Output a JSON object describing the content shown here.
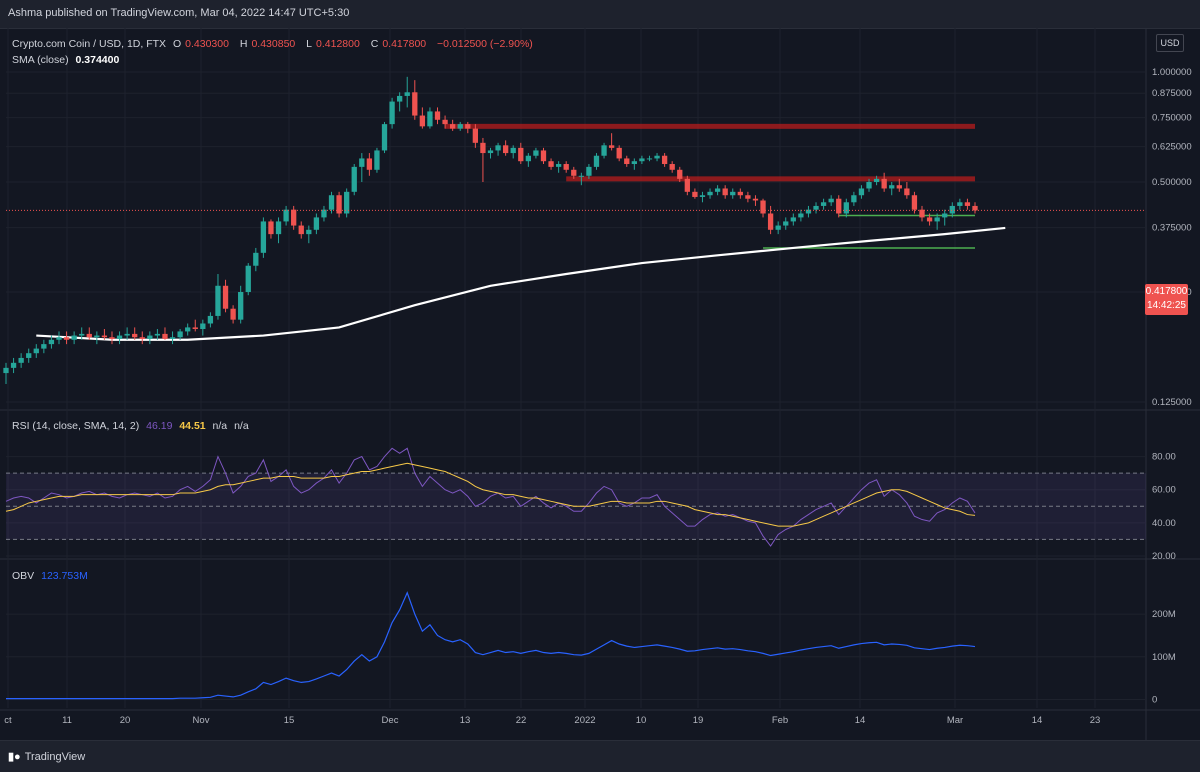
{
  "header": {
    "publisher": "Ashma published on TradingView.com, Mar 04, 2022 14:47 UTC+5:30"
  },
  "legend": {
    "symbol": "Crypto.com Coin / USD, 1D, FTX",
    "o_label": "O",
    "o_value": "0.430300",
    "h_label": "H",
    "h_value": "0.430850",
    "l_label": "L",
    "l_value": "0.412800",
    "c_label": "C",
    "c_value": "0.417800",
    "change": "−0.012500 (−2.90%)",
    "sma_label": "SMA (close)",
    "sma_value": "0.374400"
  },
  "rsi_legend": {
    "label": "RSI (14, close, SMA, 14, 2)",
    "value": "46.19",
    "sma_value": "44.51",
    "na1": "n/a",
    "na2": "n/a"
  },
  "obv_legend": {
    "label": "OBV",
    "value": "123.753M"
  },
  "currency": "USD",
  "last_price": {
    "value": "0.417800",
    "countdown": "14:42:25"
  },
  "footer": {
    "brand": "TradingView"
  },
  "colors": {
    "bg": "#131722",
    "up": "#26a69a",
    "down": "#ef5350",
    "sma": "#ffffff",
    "rsi": "#7e57c2",
    "rsi_sma": "#f7c948",
    "obv": "#2962ff",
    "support": "#4caf50",
    "resistance": "#b71c1c"
  },
  "chart_data": [
    {
      "type": "candlestick",
      "y_ticks": [
        "1.000000",
        "0.875000",
        "0.750000",
        "0.625000",
        "0.500000",
        "0.375000",
        "0.250000",
        "0.125000"
      ],
      "ylim": [
        0.125,
        1.0
      ],
      "x_ticks": [
        "ct",
        "11",
        "20",
        "Nov",
        "15",
        "Dec",
        "13",
        "22",
        "2022",
        "10",
        "19",
        "Feb",
        "14",
        "Mar",
        "14",
        "23"
      ],
      "ohlc": [
        [
          0.15,
          0.16,
          0.14,
          0.155
        ],
        [
          0.155,
          0.165,
          0.15,
          0.16
        ],
        [
          0.16,
          0.17,
          0.155,
          0.165
        ],
        [
          0.165,
          0.175,
          0.16,
          0.17
        ],
        [
          0.17,
          0.18,
          0.165,
          0.175
        ],
        [
          0.175,
          0.185,
          0.17,
          0.18
        ],
        [
          0.18,
          0.19,
          0.175,
          0.185
        ],
        [
          0.185,
          0.195,
          0.18,
          0.188
        ],
        [
          0.188,
          0.195,
          0.18,
          0.185
        ],
        [
          0.185,
          0.195,
          0.18,
          0.19
        ],
        [
          0.19,
          0.2,
          0.185,
          0.192
        ],
        [
          0.192,
          0.2,
          0.185,
          0.188
        ],
        [
          0.188,
          0.195,
          0.18,
          0.19
        ],
        [
          0.19,
          0.198,
          0.185,
          0.188
        ],
        [
          0.188,
          0.195,
          0.18,
          0.186
        ],
        [
          0.186,
          0.195,
          0.18,
          0.19
        ],
        [
          0.19,
          0.2,
          0.185,
          0.192
        ],
        [
          0.192,
          0.2,
          0.185,
          0.188
        ],
        [
          0.188,
          0.195,
          0.18,
          0.186
        ],
        [
          0.186,
          0.195,
          0.18,
          0.19
        ],
        [
          0.19,
          0.198,
          0.185,
          0.192
        ],
        [
          0.192,
          0.2,
          0.185,
          0.186
        ],
        [
          0.186,
          0.195,
          0.18,
          0.188
        ],
        [
          0.188,
          0.198,
          0.185,
          0.195
        ],
        [
          0.195,
          0.205,
          0.19,
          0.2
        ],
        [
          0.2,
          0.21,
          0.195,
          0.198
        ],
        [
          0.198,
          0.21,
          0.19,
          0.205
        ],
        [
          0.205,
          0.22,
          0.2,
          0.215
        ],
        [
          0.215,
          0.28,
          0.21,
          0.26
        ],
        [
          0.26,
          0.27,
          0.22,
          0.225
        ],
        [
          0.225,
          0.23,
          0.205,
          0.21
        ],
        [
          0.21,
          0.26,
          0.205,
          0.25
        ],
        [
          0.25,
          0.3,
          0.245,
          0.295
        ],
        [
          0.295,
          0.33,
          0.285,
          0.32
        ],
        [
          0.32,
          0.4,
          0.31,
          0.39
        ],
        [
          0.39,
          0.395,
          0.35,
          0.36
        ],
        [
          0.36,
          0.4,
          0.34,
          0.39
        ],
        [
          0.39,
          0.43,
          0.38,
          0.42
        ],
        [
          0.42,
          0.43,
          0.37,
          0.38
        ],
        [
          0.38,
          0.39,
          0.35,
          0.36
        ],
        [
          0.36,
          0.38,
          0.34,
          0.37
        ],
        [
          0.37,
          0.41,
          0.36,
          0.4
        ],
        [
          0.4,
          0.43,
          0.39,
          0.42
        ],
        [
          0.42,
          0.47,
          0.41,
          0.46
        ],
        [
          0.46,
          0.47,
          0.4,
          0.41
        ],
        [
          0.41,
          0.48,
          0.4,
          0.47
        ],
        [
          0.47,
          0.56,
          0.46,
          0.55
        ],
        [
          0.55,
          0.6,
          0.5,
          0.58
        ],
        [
          0.58,
          0.6,
          0.52,
          0.54
        ],
        [
          0.54,
          0.62,
          0.53,
          0.61
        ],
        [
          0.61,
          0.73,
          0.6,
          0.72
        ],
        [
          0.72,
          0.85,
          0.7,
          0.83
        ],
        [
          0.83,
          0.88,
          0.78,
          0.86
        ],
        [
          0.86,
          0.97,
          0.8,
          0.88
        ],
        [
          0.88,
          0.95,
          0.74,
          0.76
        ],
        [
          0.76,
          0.8,
          0.7,
          0.71
        ],
        [
          0.71,
          0.8,
          0.7,
          0.78
        ],
        [
          0.78,
          0.8,
          0.72,
          0.74
        ],
        [
          0.74,
          0.76,
          0.7,
          0.72
        ],
        [
          0.72,
          0.74,
          0.69,
          0.7
        ],
        [
          0.7,
          0.73,
          0.69,
          0.72
        ],
        [
          0.72,
          0.73,
          0.68,
          0.7
        ],
        [
          0.7,
          0.72,
          0.62,
          0.64
        ],
        [
          0.64,
          0.66,
          0.5,
          0.6
        ],
        [
          0.6,
          0.62,
          0.58,
          0.61
        ],
        [
          0.61,
          0.64,
          0.59,
          0.63
        ],
        [
          0.63,
          0.65,
          0.59,
          0.6
        ],
        [
          0.6,
          0.63,
          0.58,
          0.62
        ],
        [
          0.62,
          0.64,
          0.56,
          0.57
        ],
        [
          0.57,
          0.6,
          0.55,
          0.59
        ],
        [
          0.59,
          0.62,
          0.58,
          0.61
        ],
        [
          0.61,
          0.62,
          0.56,
          0.57
        ],
        [
          0.57,
          0.58,
          0.54,
          0.55
        ],
        [
          0.55,
          0.57,
          0.53,
          0.56
        ],
        [
          0.56,
          0.57,
          0.53,
          0.54
        ],
        [
          0.54,
          0.55,
          0.51,
          0.52
        ],
        [
          0.52,
          0.53,
          0.49,
          0.52
        ],
        [
          0.52,
          0.56,
          0.51,
          0.55
        ],
        [
          0.55,
          0.6,
          0.54,
          0.59
        ],
        [
          0.59,
          0.64,
          0.58,
          0.63
        ],
        [
          0.63,
          0.68,
          0.61,
          0.62
        ],
        [
          0.62,
          0.63,
          0.57,
          0.58
        ],
        [
          0.58,
          0.59,
          0.55,
          0.56
        ],
        [
          0.56,
          0.58,
          0.54,
          0.57
        ],
        [
          0.57,
          0.59,
          0.56,
          0.58
        ],
        [
          0.58,
          0.59,
          0.57,
          0.58
        ],
        [
          0.58,
          0.6,
          0.57,
          0.59
        ],
        [
          0.59,
          0.6,
          0.55,
          0.56
        ],
        [
          0.56,
          0.57,
          0.53,
          0.54
        ],
        [
          0.54,
          0.55,
          0.5,
          0.51
        ],
        [
          0.51,
          0.52,
          0.46,
          0.47
        ],
        [
          0.47,
          0.48,
          0.45,
          0.455
        ],
        [
          0.455,
          0.47,
          0.44,
          0.46
        ],
        [
          0.46,
          0.48,
          0.45,
          0.47
        ],
        [
          0.47,
          0.49,
          0.46,
          0.48
        ],
        [
          0.48,
          0.49,
          0.45,
          0.46
        ],
        [
          0.46,
          0.48,
          0.45,
          0.47
        ],
        [
          0.47,
          0.48,
          0.45,
          0.46
        ],
        [
          0.46,
          0.47,
          0.44,
          0.45
        ],
        [
          0.45,
          0.46,
          0.43,
          0.445
        ],
        [
          0.445,
          0.45,
          0.4,
          0.41
        ],
        [
          0.41,
          0.43,
          0.36,
          0.37
        ],
        [
          0.37,
          0.39,
          0.36,
          0.38
        ],
        [
          0.38,
          0.4,
          0.37,
          0.39
        ],
        [
          0.39,
          0.41,
          0.38,
          0.4
        ],
        [
          0.4,
          0.42,
          0.39,
          0.41
        ],
        [
          0.41,
          0.43,
          0.4,
          0.42
        ],
        [
          0.42,
          0.44,
          0.41,
          0.43
        ],
        [
          0.43,
          0.45,
          0.42,
          0.44
        ],
        [
          0.44,
          0.46,
          0.43,
          0.45
        ],
        [
          0.45,
          0.46,
          0.4,
          0.41
        ],
        [
          0.41,
          0.45,
          0.4,
          0.44
        ],
        [
          0.44,
          0.47,
          0.43,
          0.46
        ],
        [
          0.46,
          0.49,
          0.45,
          0.48
        ],
        [
          0.48,
          0.51,
          0.47,
          0.5
        ],
        [
          0.5,
          0.52,
          0.49,
          0.51
        ],
        [
          0.51,
          0.53,
          0.47,
          0.48
        ],
        [
          0.48,
          0.5,
          0.46,
          0.49
        ],
        [
          0.49,
          0.51,
          0.47,
          0.48
        ],
        [
          0.48,
          0.5,
          0.45,
          0.46
        ],
        [
          0.46,
          0.47,
          0.41,
          0.42
        ],
        [
          0.42,
          0.43,
          0.39,
          0.4
        ],
        [
          0.4,
          0.41,
          0.38,
          0.39
        ],
        [
          0.39,
          0.41,
          0.37,
          0.4
        ],
        [
          0.4,
          0.42,
          0.38,
          0.41
        ],
        [
          0.41,
          0.44,
          0.4,
          0.43
        ],
        [
          0.43,
          0.45,
          0.42,
          0.44
        ],
        [
          0.44,
          0.45,
          0.42,
          0.43
        ],
        [
          0.43,
          0.44,
          0.41,
          0.418
        ]
      ],
      "sma": [
        [
          0,
          0.19
        ],
        [
          10,
          0.185
        ],
        [
          20,
          0.185
        ],
        [
          30,
          0.19
        ],
        [
          40,
          0.2
        ],
        [
          50,
          0.23
        ],
        [
          60,
          0.26
        ],
        [
          70,
          0.28
        ],
        [
          80,
          0.3
        ],
        [
          90,
          0.315
        ],
        [
          100,
          0.33
        ],
        [
          110,
          0.345
        ],
        [
          120,
          0.36
        ],
        [
          128,
          0.3744
        ]
      ],
      "horizontal_levels": [
        {
          "kind": "resistance",
          "price": 0.71,
          "from": 58,
          "to": 128
        },
        {
          "kind": "resistance",
          "price": 0.51,
          "from": 74,
          "to": 128
        },
        {
          "kind": "support",
          "price": 0.405,
          "from": 110,
          "to": 128
        },
        {
          "kind": "support",
          "price": 0.33,
          "from": 100,
          "to": 128
        }
      ]
    },
    {
      "type": "line",
      "name": "RSI",
      "y_ticks": [
        "80.00",
        "60.00",
        "40.00",
        "20.00"
      ],
      "ylim": [
        20,
        90
      ],
      "rsi": [
        53,
        55,
        56,
        55,
        52,
        55,
        58,
        57,
        55,
        56,
        58,
        59,
        57,
        58,
        56,
        55,
        57,
        58,
        57,
        56,
        58,
        55,
        56,
        60,
        62,
        59,
        62,
        66,
        80,
        70,
        58,
        62,
        68,
        70,
        78,
        65,
        68,
        72,
        62,
        58,
        60,
        64,
        67,
        72,
        64,
        70,
        78,
        80,
        72,
        74,
        80,
        85,
        82,
        85,
        70,
        62,
        68,
        64,
        60,
        58,
        60,
        56,
        50,
        52,
        56,
        58,
        55,
        56,
        50,
        53,
        56,
        52,
        49,
        52,
        50,
        47,
        47,
        52,
        58,
        62,
        60,
        52,
        50,
        52,
        55,
        55,
        57,
        50,
        46,
        42,
        38,
        38,
        42,
        45,
        46,
        44,
        45,
        43,
        41,
        40,
        32,
        26,
        33,
        36,
        38,
        42,
        45,
        48,
        50,
        52,
        45,
        50,
        55,
        60,
        64,
        66,
        56,
        60,
        57,
        52,
        44,
        42,
        41,
        46,
        48,
        52,
        55,
        53,
        46
      ],
      "rsi_sma": [
        47,
        48,
        50,
        52,
        53,
        54,
        55,
        56,
        56,
        56,
        57,
        57,
        57,
        57,
        57,
        57,
        57,
        57,
        57,
        57,
        57,
        57,
        57,
        58,
        58,
        58,
        59,
        60,
        62,
        63,
        63,
        64,
        65,
        66,
        67,
        67,
        68,
        68,
        68,
        67,
        67,
        67,
        67,
        68,
        68,
        69,
        70,
        71,
        71,
        72,
        73,
        74,
        75,
        76,
        75,
        74,
        73,
        72,
        71,
        69,
        67,
        65,
        62,
        60,
        59,
        58,
        57,
        57,
        56,
        55,
        55,
        54,
        53,
        52,
        51,
        50,
        50,
        50,
        51,
        52,
        53,
        53,
        52,
        52,
        52,
        52,
        53,
        53,
        52,
        51,
        50,
        48,
        47,
        46,
        45,
        45,
        44,
        43,
        42,
        41,
        40,
        39,
        38,
        38,
        38,
        39,
        40,
        42,
        44,
        46,
        48,
        50,
        52,
        54,
        56,
        58,
        59,
        60,
        60,
        59,
        57,
        55,
        53,
        51,
        49,
        48,
        47,
        45,
        44.5
      ]
    },
    {
      "type": "line",
      "name": "OBV",
      "y_ticks": [
        "200M",
        "100M",
        "0"
      ],
      "ylim": [
        -20,
        280
      ],
      "obv": [
        2,
        2,
        2,
        2,
        2,
        2,
        2,
        2,
        2,
        2,
        2,
        2,
        2,
        2,
        2,
        2,
        2,
        2,
        2,
        2,
        2,
        2,
        2,
        3,
        3,
        3,
        4,
        5,
        10,
        8,
        6,
        10,
        18,
        25,
        40,
        35,
        42,
        50,
        44,
        40,
        42,
        48,
        55,
        62,
        55,
        70,
        90,
        105,
        90,
        100,
        135,
        180,
        210,
        250,
        200,
        160,
        175,
        150,
        140,
        135,
        140,
        130,
        110,
        105,
        110,
        115,
        110,
        112,
        108,
        112,
        115,
        110,
        108,
        110,
        108,
        105,
        104,
        108,
        118,
        128,
        138,
        130,
        125,
        122,
        124,
        126,
        128,
        125,
        122,
        118,
        113,
        114,
        117,
        119,
        121,
        118,
        119,
        117,
        114,
        112,
        108,
        103,
        106,
        109,
        112,
        116,
        119,
        122,
        124,
        126,
        120,
        124,
        128,
        131,
        133,
        134,
        128,
        130,
        129,
        127,
        121,
        119,
        117,
        120,
        122,
        125,
        127,
        126,
        124
      ]
    }
  ]
}
